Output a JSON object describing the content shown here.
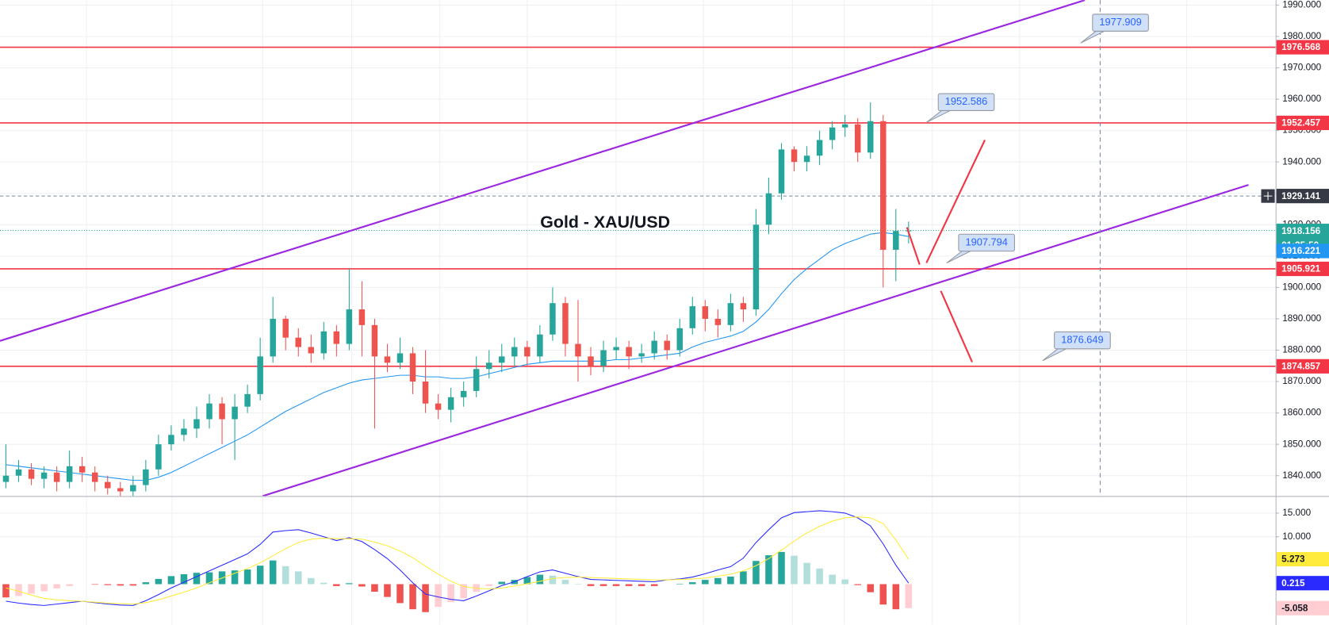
{
  "chart_data": [
    {
      "type": "candlestick",
      "title": "Gold - XAU/USD",
      "open": [
        1838,
        1840,
        1842,
        1839,
        1841,
        1838,
        1843,
        1841,
        1838,
        1836,
        1835,
        1837,
        1842,
        1850,
        1853,
        1855,
        1858,
        1863,
        1858,
        1862,
        1866,
        1878,
        1890,
        1884,
        1881,
        1879,
        1886,
        1882,
        1893,
        1888,
        1878,
        1876,
        1879,
        1870,
        1863,
        1861,
        1865,
        1867,
        1874,
        1876,
        1878,
        1881,
        1878,
        1885,
        1895,
        1882,
        1878,
        1875,
        1880,
        1881,
        1878,
        1879,
        1883,
        1880,
        1887,
        1894,
        1890,
        1888,
        1895,
        1893,
        1920,
        1930,
        1944,
        1940,
        1942,
        1947,
        1951,
        1952,
        1943,
        1953,
        1912,
        1918
      ],
      "high": [
        1850,
        1845,
        1844,
        1843,
        1843,
        1848,
        1846,
        1843,
        1840,
        1838,
        1840,
        1845,
        1853,
        1856,
        1858,
        1862,
        1866,
        1865,
        1866,
        1869,
        1884,
        1897,
        1891,
        1887,
        1885,
        1889,
        1888,
        1906,
        1902,
        1890,
        1882,
        1884,
        1881,
        1880,
        1866,
        1868,
        1870,
        1878,
        1880,
        1882,
        1884,
        1883,
        1888,
        1900,
        1897,
        1896,
        1881,
        1883,
        1884,
        1883,
        1882,
        1886,
        1885,
        1890,
        1897,
        1896,
        1893,
        1898,
        1897,
        1925,
        1935,
        1946,
        1945,
        1945,
        1950,
        1953,
        1955,
        1954,
        1959,
        1955,
        1925,
        1921
      ],
      "low": [
        1836,
        1838,
        1837,
        1836,
        1835,
        1836,
        1838,
        1835,
        1834,
        1833,
        1833,
        1835,
        1840,
        1848,
        1851,
        1852,
        1855,
        1850,
        1845,
        1860,
        1864,
        1876,
        1880,
        1878,
        1876,
        1877,
        1878,
        1880,
        1878,
        1855,
        1873,
        1874,
        1866,
        1860,
        1858,
        1857,
        1862,
        1865,
        1871,
        1873,
        1875,
        1875,
        1876,
        1883,
        1878,
        1870,
        1872,
        1873,
        1877,
        1874,
        1876,
        1877,
        1877,
        1878,
        1885,
        1886,
        1884,
        1886,
        1889,
        1891,
        1917,
        1928,
        1937,
        1937,
        1939,
        1944,
        1948,
        1940,
        1941,
        1900,
        1902,
        1914
      ],
      "close": [
        1840,
        1842,
        1839,
        1841,
        1838,
        1843,
        1841,
        1838,
        1836,
        1835,
        1837,
        1842,
        1850,
        1853,
        1855,
        1858,
        1863,
        1858,
        1862,
        1866,
        1878,
        1890,
        1884,
        1881,
        1879,
        1886,
        1882,
        1893,
        1888,
        1878,
        1876,
        1879,
        1870,
        1863,
        1861,
        1865,
        1867,
        1874,
        1876,
        1878,
        1881,
        1878,
        1885,
        1895,
        1882,
        1878,
        1875,
        1880,
        1881,
        1878,
        1879,
        1883,
        1880,
        1887,
        1894,
        1890,
        1888,
        1895,
        1893,
        1920,
        1930,
        1944,
        1940,
        1942,
        1947,
        1951,
        1952,
        1943,
        1953,
        1912,
        1918,
        1918.156
      ],
      "up_color": "#26a69a",
      "down_color": "#ef5350",
      "ma": {
        "color": "#2196f3",
        "values": [
          1843.5,
          1843,
          1842.5,
          1842,
          1841.5,
          1841,
          1840.5,
          1840,
          1839.5,
          1839,
          1838.5,
          1838.5,
          1839.5,
          1841,
          1843,
          1845,
          1847,
          1849,
          1851,
          1853,
          1855.5,
          1858,
          1860.5,
          1862.5,
          1864.5,
          1866.5,
          1868,
          1869.5,
          1870.5,
          1871,
          1871.5,
          1872,
          1872,
          1871.5,
          1871.5,
          1871,
          1871,
          1871.5,
          1872.5,
          1873.5,
          1874.5,
          1875.5,
          1876,
          1876.5,
          1876.5,
          1876.5,
          1876.5,
          1876.5,
          1877,
          1877,
          1877.5,
          1878,
          1878.5,
          1879,
          1881,
          1882.5,
          1883.5,
          1884.5,
          1886,
          1889,
          1893,
          1898,
          1902.5,
          1906,
          1909,
          1912,
          1914,
          1915.5,
          1917,
          1917.5,
          1917,
          1916.221
        ]
      },
      "ylim": [
        1833.5,
        1991.6
      ],
      "yticks": [
        {
          "value": 1840,
          "label": "1840.000"
        },
        {
          "value": 1850,
          "label": "1850.000"
        },
        {
          "value": 1860,
          "label": "1860.000"
        },
        {
          "value": 1870,
          "label": "1870.000"
        },
        {
          "value": 1880,
          "label": "1880.000"
        },
        {
          "value": 1890,
          "label": "1890.000"
        },
        {
          "value": 1900,
          "label": "1900.000"
        },
        {
          "value": 1910,
          "label": "1910.000"
        },
        {
          "value": 1920,
          "label": "1920.000"
        },
        {
          "value": 1930,
          "label": "1930.000"
        },
        {
          "value": 1940,
          "label": "1940.000"
        },
        {
          "value": 1950,
          "label": "1950.000"
        },
        {
          "value": 1960,
          "label": "1960.000"
        },
        {
          "value": 1970,
          "label": "1970.000"
        },
        {
          "value": 1980,
          "label": "1980.000"
        },
        {
          "value": 1990,
          "label": "1990.000"
        }
      ],
      "grid": true,
      "levels": {
        "color": "#f23645",
        "values": [
          1976.568,
          1952.457,
          1905.921,
          1874.857
        ]
      },
      "crosshair": 1929.141,
      "countdown": "01:35:50",
      "callouts": [
        1977.909,
        1952.586,
        1907.794,
        1876.649
      ]
    },
    {
      "type": "macd",
      "macd": {
        "color": "#2a2aff",
        "values": [
          -3.6,
          -4.0,
          -4.3,
          -4.5,
          -4.2,
          -3.9,
          -3.6,
          -3.9,
          -4.2,
          -4.4,
          -4.5,
          -3.5,
          -2.2,
          -0.8,
          0.4,
          1.6,
          2.8,
          4.0,
          5.2,
          6.4,
          8.4,
          11.0,
          11.3,
          11.5,
          10.8,
          10.0,
          9.2,
          9.8,
          9.0,
          7.3,
          5.4,
          3.0,
          0.3,
          -2.1,
          -2.7,
          -3.2,
          -3.5,
          -2.5,
          -1.4,
          -0.3,
          0.5,
          1.6,
          2.6,
          3.0,
          2.3,
          1.6,
          1.0,
          0.9,
          0.8,
          0.7,
          0.6,
          0.5,
          0.9,
          1.1,
          1.5,
          2.2,
          3.0,
          3.7,
          5.5,
          8.8,
          11.5,
          14.0,
          15.1,
          15.3,
          15.5,
          15.3,
          15.0,
          14.0,
          12.3,
          8.5,
          4.0,
          0.215
        ]
      },
      "signal": {
        "color": "#ffeb3b",
        "values": [
          -0.8,
          -1.5,
          -2.3,
          -3.0,
          -3.3,
          -3.5,
          -3.6,
          -3.8,
          -4.0,
          -4.1,
          -4.2,
          -3.9,
          -3.3,
          -2.5,
          -1.7,
          -0.8,
          0.3,
          1.3,
          2.3,
          3.3,
          4.5,
          6.0,
          7.5,
          8.8,
          9.5,
          9.7,
          9.6,
          9.6,
          9.5,
          8.9,
          8.1,
          7.0,
          5.6,
          3.8,
          2.1,
          0.6,
          -0.5,
          -0.9,
          -1.0,
          -0.8,
          -0.4,
          0.1,
          0.6,
          1.2,
          1.4,
          1.5,
          1.4,
          1.3,
          1.2,
          1.1,
          1.0,
          0.9,
          0.9,
          1.0,
          1.1,
          1.3,
          1.7,
          2.1,
          2.8,
          3.9,
          5.4,
          7.2,
          9.1,
          10.8,
          12.2,
          13.3,
          14.0,
          14.2,
          14.0,
          12.8,
          9.3,
          5.273
        ]
      },
      "histogram": {
        "colors": [
          "#26a69a",
          "#b2dfdb",
          "#ef5350",
          "#ffcdd2"
        ],
        "values": [
          -2.8,
          -2.5,
          -2.0,
          -1.5,
          -0.9,
          -0.4,
          0.0,
          -0.1,
          -0.2,
          -0.3,
          -0.3,
          0.4,
          1.1,
          1.7,
          2.1,
          2.4,
          2.5,
          2.7,
          2.9,
          3.1,
          3.9,
          5.0,
          3.8,
          2.7,
          1.3,
          0.3,
          -0.4,
          0.2,
          -0.5,
          -1.6,
          -2.7,
          -4.0,
          -5.3,
          -5.9,
          -4.8,
          -3.8,
          -3.0,
          -1.6,
          -0.4,
          0.5,
          0.9,
          1.5,
          2.0,
          1.8,
          0.9,
          0.1,
          -0.4,
          -0.4,
          -0.4,
          -0.4,
          -0.4,
          -0.4,
          0.0,
          0.1,
          0.4,
          0.9,
          1.3,
          1.6,
          2.7,
          4.9,
          6.1,
          6.8,
          6.0,
          4.5,
          3.3,
          2.0,
          1.0,
          -0.2,
          -1.7,
          -4.3,
          -5.3,
          -5.058
        ]
      },
      "ylim": [
        -8.6,
        18.6
      ],
      "yticks": [
        {
          "value": 15,
          "label": "15.000"
        },
        {
          "value": 10,
          "label": "10.000"
        }
      ]
    }
  ]
}
